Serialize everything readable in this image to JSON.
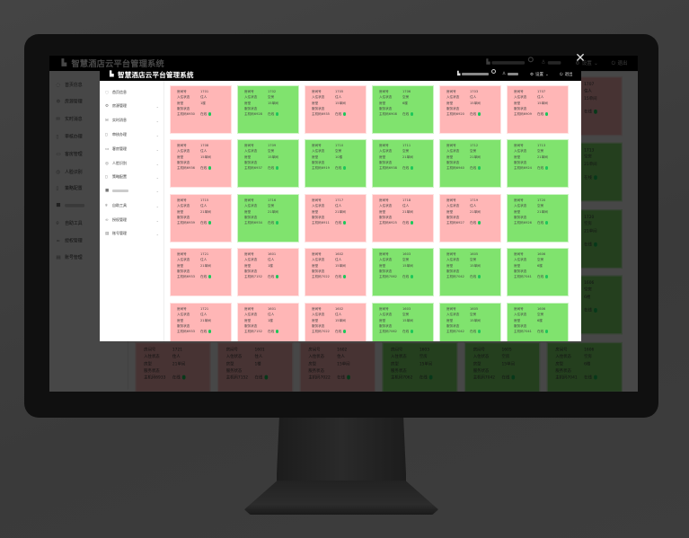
{
  "app": {
    "title": "智慧酒店云平台管理系统",
    "header": {
      "settings_label": "设置",
      "logout_label": "退出"
    },
    "sidebar": [
      {
        "icon": "home-icon",
        "label": "首页信息",
        "chevron": false
      },
      {
        "icon": "gear-icon",
        "label": "房源管理",
        "chevron": true
      },
      {
        "icon": "mail-icon",
        "label": "实时消息",
        "chevron": true
      },
      {
        "icon": "document-icon",
        "label": "审核办理",
        "chevron": true
      },
      {
        "icon": "briefcase-icon",
        "label": "客房管理",
        "chevron": true
      },
      {
        "icon": "eye-icon",
        "label": "人脸识别",
        "chevron": true
      },
      {
        "icon": "document-icon",
        "label": "策略配置",
        "chevron": true
      },
      {
        "icon": "square-icon",
        "label": "",
        "chevron": true
      },
      {
        "icon": "location-icon",
        "label": "自助工具",
        "chevron": true
      },
      {
        "icon": "link-icon",
        "label": "授权管理",
        "chevron": true
      },
      {
        "icon": "calendar-icon",
        "label": "账号管理",
        "chevron": true
      }
    ],
    "card_labels": {
      "room": "房间号",
      "checkin": "入住状态",
      "type": "房型",
      "service": "服务状态",
      "host_prefix": "主机码",
      "online": "在线"
    },
    "colors": {
      "occupied": "#ffb6b6",
      "vacant": "#80e36e",
      "online_dot": "#1cc85a"
    },
    "rooms": [
      {
        "room": "1701",
        "status": "住人",
        "type": "1楼",
        "host": "6930"
      },
      {
        "room": "1702",
        "status": "空房",
        "type": "15单间",
        "host": "6928"
      },
      {
        "room": "1705",
        "status": "住人",
        "type": "15单间",
        "host": "6935"
      },
      {
        "room": "1706",
        "status": "空房",
        "type": "6楼",
        "host": "6908"
      },
      {
        "room": "1703",
        "status": "住人",
        "type": "15单间",
        "host": "6920"
      },
      {
        "room": "1707",
        "status": "住人",
        "type": "15单间",
        "host": "6909"
      },
      {
        "room": "1708",
        "status": "住人",
        "type": "15单间",
        "host": "6936"
      },
      {
        "room": "1709",
        "status": "空房",
        "type": "15单间",
        "host": "6937"
      },
      {
        "room": "1710",
        "status": "空房",
        "type": "10楼",
        "host": "6919"
      },
      {
        "room": "1711",
        "status": "空房",
        "type": "21单间",
        "host": "6938"
      },
      {
        "room": "1712",
        "status": "空房",
        "type": "21单间",
        "host": "6940"
      },
      {
        "room": "1713",
        "status": "空房",
        "type": "21单间",
        "host": "6924"
      },
      {
        "room": "1715",
        "status": "住人",
        "type": "21单间",
        "host": "6939"
      },
      {
        "room": "1716",
        "status": "空房",
        "type": "21单间",
        "host": "6934"
      },
      {
        "room": "1717",
        "status": "住人",
        "type": "21单间",
        "host": "6911"
      },
      {
        "room": "1718",
        "status": "住人",
        "type": "21单间",
        "host": "6925"
      },
      {
        "room": "1719",
        "status": "住人",
        "type": "21单间",
        "host": "6927"
      },
      {
        "room": "1720",
        "status": "空房",
        "type": "21单间",
        "host": "6926"
      },
      {
        "room": "1721",
        "status": "住人",
        "type": "21单间",
        "host": "6933"
      },
      {
        "room": "1601",
        "status": "住人",
        "type": "1楼",
        "host": "7152"
      },
      {
        "room": "1602",
        "status": "住人",
        "type": "15单间",
        "host": "7022"
      },
      {
        "room": "1603",
        "status": "空房",
        "type": "15单间",
        "host": "7062"
      },
      {
        "room": "1605",
        "status": "空房",
        "type": "15单间",
        "host": "7042"
      },
      {
        "room": "1606",
        "status": "空房",
        "type": "6楼",
        "host": "7041"
      },
      {
        "room": "1721",
        "status": "住人",
        "type": "21单间",
        "host": "6933"
      },
      {
        "room": "1601",
        "status": "住人",
        "type": "1楼",
        "host": "7152"
      },
      {
        "room": "1602",
        "status": "住人",
        "type": "15单间",
        "host": "7022"
      },
      {
        "room": "1603",
        "status": "空房",
        "type": "15单间",
        "host": "7062"
      },
      {
        "room": "1605",
        "status": "空房",
        "type": "15单间",
        "host": "7042"
      },
      {
        "room": "1606",
        "status": "空房",
        "type": "6楼",
        "host": "7041"
      }
    ]
  },
  "preview": {
    "close_icon": "close-icon"
  }
}
